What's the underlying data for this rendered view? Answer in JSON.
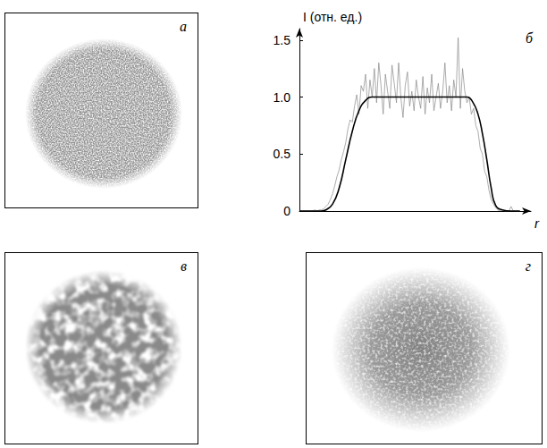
{
  "panel_labels": [
    "а",
    "б",
    "в",
    "г"
  ],
  "chart_data": {
    "type": "line",
    "ylabel": "I (отн. ед.)",
    "xlabel": "r",
    "xlim": [
      0,
      1.05
    ],
    "xticks": [],
    "ylim": [
      0,
      1.6
    ],
    "yticks": [
      0,
      0.5,
      {
        "value": 1,
        "label": "1.0"
      },
      1.5
    ],
    "grid": false,
    "tick_labels": "y",
    "series": [
      {
        "color": "#000000",
        "line_style": "smooth",
        "marker": "none",
        "x": [
          0,
          0.05,
          0.1,
          0.12,
          0.15,
          0.18,
          0.21,
          0.24,
          0.27,
          0.3,
          0.33,
          0.4,
          0.5,
          0.6,
          0.7,
          0.76,
          0.785,
          0.81,
          0.83,
          0.85,
          0.87,
          0.89,
          0.92,
          0.96,
          1.0
        ],
        "values": [
          0,
          0,
          0,
          0.01,
          0.06,
          0.2,
          0.45,
          0.7,
          0.88,
          0.97,
          1.0,
          1.0,
          1.0,
          1.0,
          1.0,
          1.0,
          0.96,
          0.85,
          0.68,
          0.45,
          0.2,
          0.05,
          0.01,
          0,
          0
        ]
      },
      {
        "color": "#888888",
        "line_style": "solid",
        "marker": "none",
        "x": [
          0,
          0.01,
          0.02,
          0.03,
          0.04,
          0.05,
          0.06,
          0.07,
          0.08,
          0.09,
          0.1,
          0.11,
          0.12,
          0.13,
          0.14,
          0.15,
          0.16,
          0.17,
          0.18,
          0.19,
          0.2,
          0.21,
          0.22,
          0.23,
          0.24,
          0.25,
          0.26,
          0.27,
          0.28,
          0.29,
          0.3,
          0.31,
          0.32,
          0.33,
          0.34,
          0.35,
          0.36,
          0.37,
          0.38,
          0.39,
          0.4,
          0.41,
          0.42,
          0.43,
          0.44,
          0.45,
          0.46,
          0.47,
          0.48,
          0.49,
          0.5,
          0.51,
          0.52,
          0.53,
          0.54,
          0.55,
          0.56,
          0.57,
          0.58,
          0.59,
          0.6,
          0.61,
          0.62,
          0.63,
          0.64,
          0.65,
          0.66,
          0.67,
          0.68,
          0.69,
          0.7,
          0.71,
          0.72,
          0.73,
          0.74,
          0.75,
          0.76,
          0.77,
          0.78,
          0.79,
          0.8,
          0.81,
          0.82,
          0.83,
          0.84,
          0.85,
          0.86,
          0.87,
          0.88,
          0.89,
          0.9,
          0.91,
          0.92,
          0.93,
          0.94,
          0.95,
          0.96,
          0.97,
          0.98,
          0.99,
          1.0
        ],
        "values": [
          0,
          0,
          0,
          0,
          0,
          0,
          0,
          0.01,
          0,
          0.01,
          0.01,
          0.02,
          0.04,
          0.06,
          0.1,
          0.15,
          0.22,
          0.3,
          0.36,
          0.45,
          0.52,
          0.6,
          0.72,
          0.8,
          0.78,
          0.92,
          1.02,
          0.85,
          1.1,
          1.05,
          1.2,
          0.9,
          1.15,
          1.0,
          1.25,
          0.95,
          1.3,
          1.1,
          0.85,
          1.2,
          1.05,
          0.9,
          1.28,
          1.12,
          0.95,
          1.3,
          1.0,
          0.82,
          1.1,
          1.22,
          0.92,
          1.05,
          0.88,
          1.15,
          1.0,
          0.9,
          1.18,
          0.85,
          1.08,
          0.95,
          1.2,
          0.88,
          1.0,
          1.12,
          0.9,
          1.05,
          1.3,
          0.95,
          1.1,
          0.88,
          1.15,
          1.0,
          1.52,
          0.9,
          1.25,
          1.05,
          0.95,
          1.0,
          0.85,
          0.9,
          0.75,
          0.7,
          0.55,
          0.5,
          0.35,
          0.3,
          0.18,
          0.1,
          0.06,
          0.03,
          0.01,
          0,
          0.01,
          0,
          0,
          0,
          0.04,
          0,
          0,
          0,
          0
        ]
      }
    ]
  }
}
